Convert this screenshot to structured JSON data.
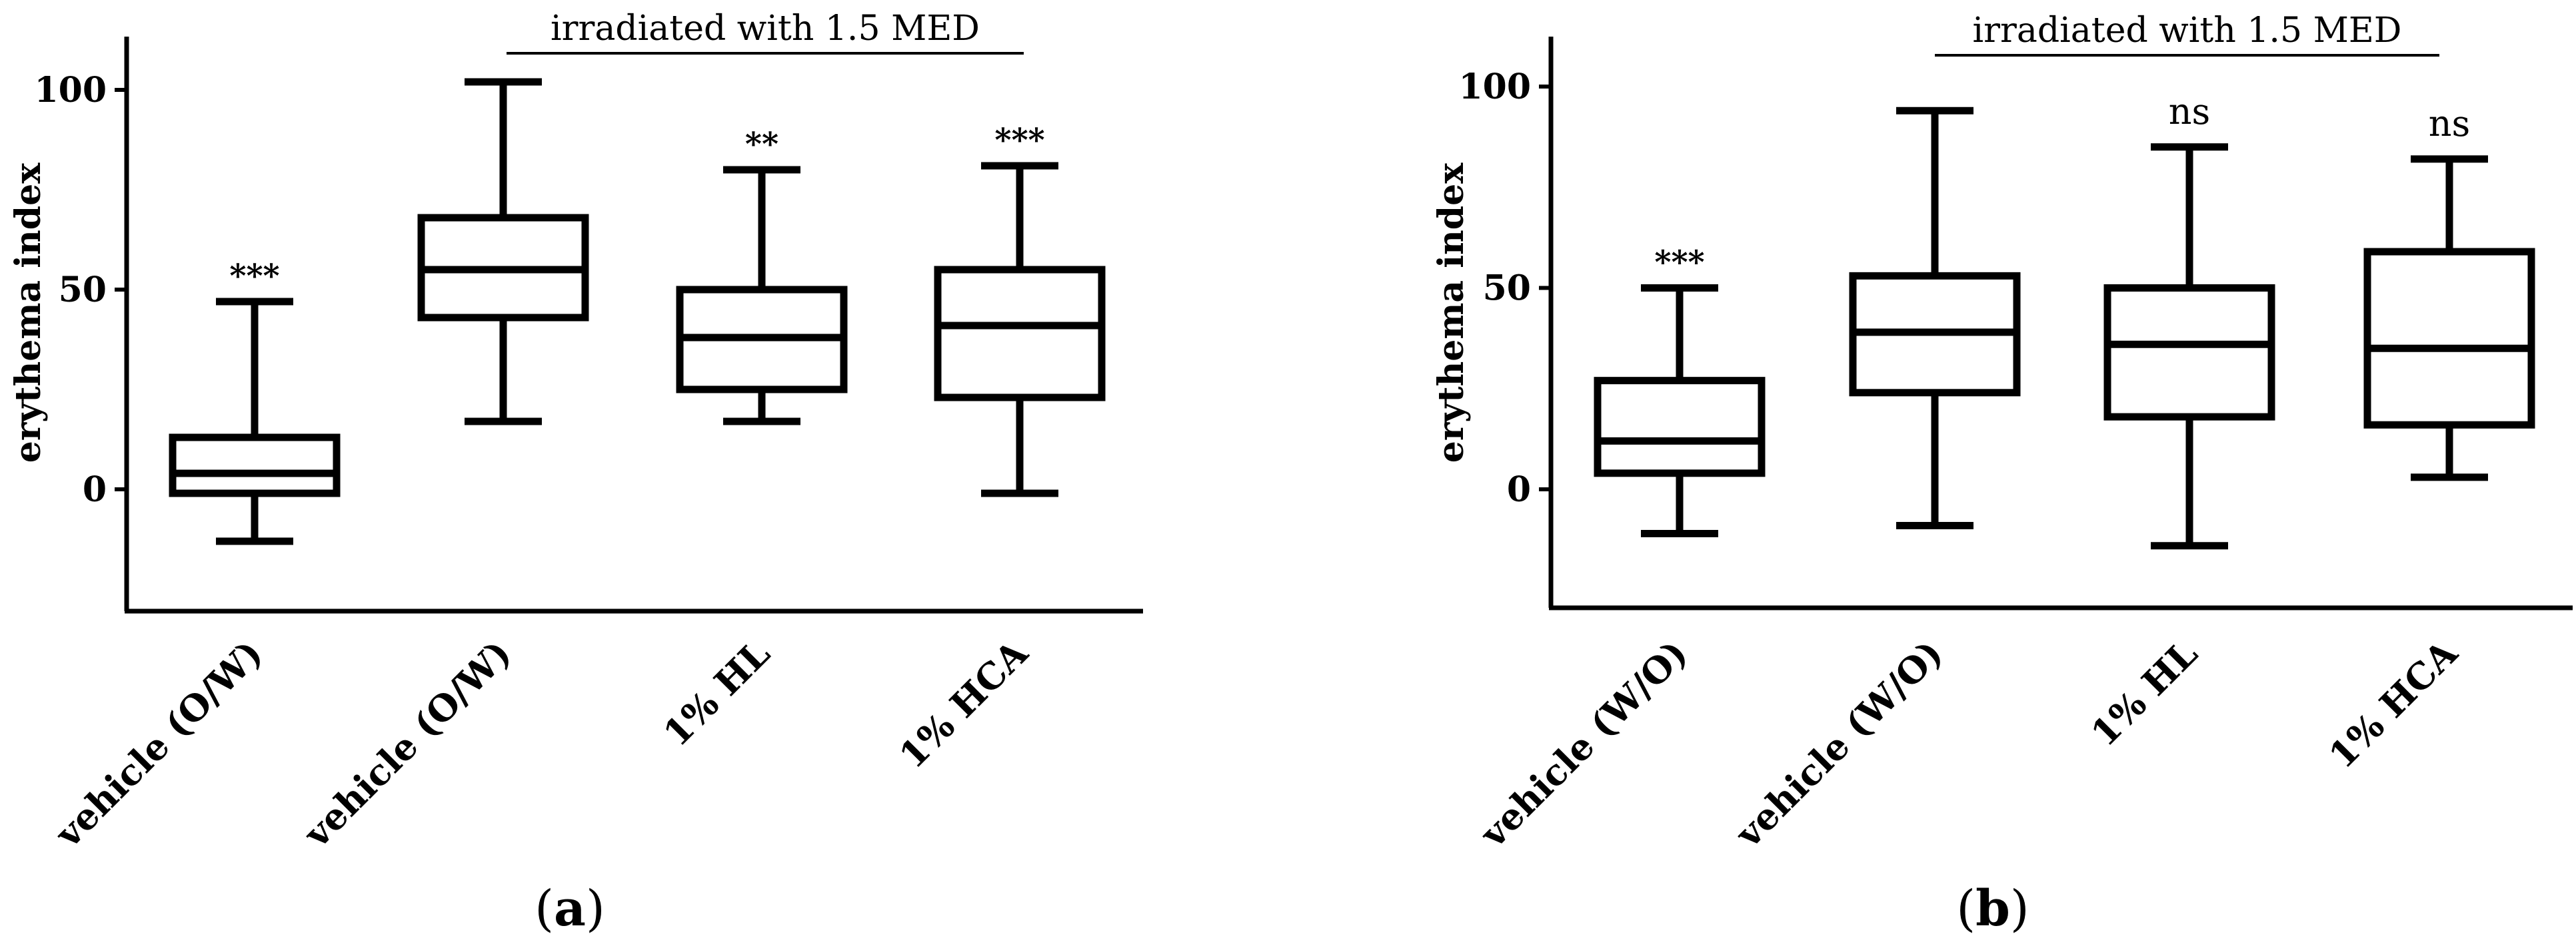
{
  "chart_data": [
    {
      "type": "box",
      "panel_label": "a",
      "ylabel": "erythema index",
      "ylim": [
        -30,
        112
      ],
      "yticks": [
        0,
        50,
        100
      ],
      "bracket_label": "irradiated with 1.5 MED",
      "bracket_span": [
        1,
        3
      ],
      "categories": [
        "vehicle (O/W)",
        "vehicle (O/W)",
        "1% HL",
        "1% HCA"
      ],
      "boxes": [
        {
          "min": -13,
          "q1": -1,
          "median": 4,
          "q3": 13,
          "max": 47,
          "sig": "***"
        },
        {
          "min": 17,
          "q1": 43,
          "median": 55,
          "q3": 68,
          "max": 102,
          "sig": ""
        },
        {
          "min": 17,
          "q1": 25,
          "median": 38,
          "q3": 50,
          "max": 80,
          "sig": "**"
        },
        {
          "min": -1,
          "q1": 23,
          "median": 41,
          "q3": 55,
          "max": 81,
          "sig": "***"
        }
      ]
    },
    {
      "type": "box",
      "panel_label": "b",
      "ylabel": "erythema index",
      "ylim": [
        -30,
        112
      ],
      "yticks": [
        0,
        50,
        100
      ],
      "bracket_label": "irradiated with 1.5 MED",
      "bracket_span": [
        1,
        3
      ],
      "categories": [
        "vehicle (W/O)",
        "vehicle (W/O)",
        "1% HL",
        "1% HCA"
      ],
      "boxes": [
        {
          "min": -11,
          "q1": 4,
          "median": 12,
          "q3": 27,
          "max": 50,
          "sig": "***"
        },
        {
          "min": -9,
          "q1": 24,
          "median": 39,
          "q3": 53,
          "max": 94,
          "sig": ""
        },
        {
          "min": -14,
          "q1": 18,
          "median": 36,
          "q3": 50,
          "max": 85,
          "sig": "ns"
        },
        {
          "min": 3,
          "q1": 16,
          "median": 35,
          "q3": 59,
          "max": 82,
          "sig": "ns"
        }
      ]
    }
  ]
}
